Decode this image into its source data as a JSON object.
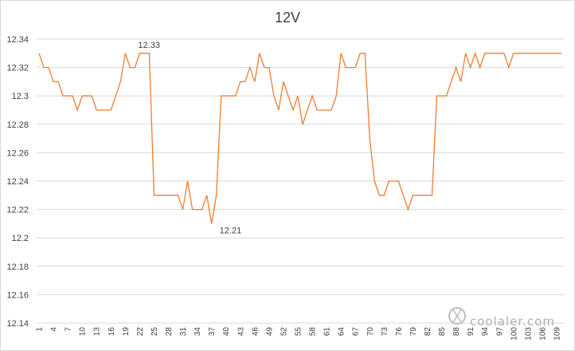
{
  "chart_data": {
    "type": "line",
    "title": "12V",
    "xlabel": "",
    "ylabel": "",
    "ylim": [
      12.14,
      12.34
    ],
    "yticks": [
      "12.14",
      "12.16",
      "12.18",
      "12.2",
      "12.22",
      "12.24",
      "12.26",
      "12.28",
      "12.3",
      "12.32",
      "12.34"
    ],
    "x_tick_labels": [
      "1",
      "4",
      "7",
      "10",
      "13",
      "16",
      "19",
      "22",
      "25",
      "28",
      "31",
      "34",
      "37",
      "40",
      "43",
      "46",
      "49",
      "52",
      "55",
      "58",
      "61",
      "64",
      "67",
      "70",
      "73",
      "76",
      "79",
      "82",
      "85",
      "88",
      "91",
      "94",
      "97",
      "100",
      "103",
      "106",
      "109"
    ],
    "series": [
      {
        "color": "#ed7d31",
        "values": [
          12.33,
          12.32,
          12.32,
          12.31,
          12.31,
          12.3,
          12.3,
          12.3,
          12.29,
          12.3,
          12.3,
          12.3,
          12.29,
          12.29,
          12.29,
          12.29,
          12.3,
          12.31,
          12.33,
          12.32,
          12.32,
          12.33,
          12.33,
          12.33,
          12.23,
          12.23,
          12.23,
          12.23,
          12.23,
          12.23,
          12.22,
          12.24,
          12.22,
          12.22,
          12.22,
          12.23,
          12.21,
          12.23,
          12.3,
          12.3,
          12.3,
          12.3,
          12.31,
          12.31,
          12.32,
          12.31,
          12.33,
          12.32,
          12.32,
          12.3,
          12.29,
          12.31,
          12.3,
          12.29,
          12.3,
          12.28,
          12.29,
          12.3,
          12.29,
          12.29,
          12.29,
          12.29,
          12.3,
          12.33,
          12.32,
          12.32,
          12.32,
          12.33,
          12.33,
          12.27,
          12.24,
          12.23,
          12.23,
          12.24,
          12.24,
          12.24,
          12.23,
          12.22,
          12.23,
          12.23,
          12.23,
          12.23,
          12.23,
          12.3,
          12.3,
          12.3,
          12.31,
          12.32,
          12.31,
          12.33,
          12.32,
          12.33,
          12.32,
          12.33,
          12.33,
          12.33,
          12.33,
          12.33,
          12.32,
          12.33,
          12.33,
          12.33,
          12.33,
          12.33,
          12.33,
          12.33,
          12.33,
          12.33,
          12.33,
          12.33
        ]
      }
    ],
    "annotations": [
      {
        "x": 23,
        "value": 12.33,
        "text": "12.33"
      },
      {
        "x": 37,
        "value": 12.21,
        "text": "12.21"
      }
    ],
    "grid": true,
    "legend": "none"
  },
  "watermark": "coolaler.com"
}
